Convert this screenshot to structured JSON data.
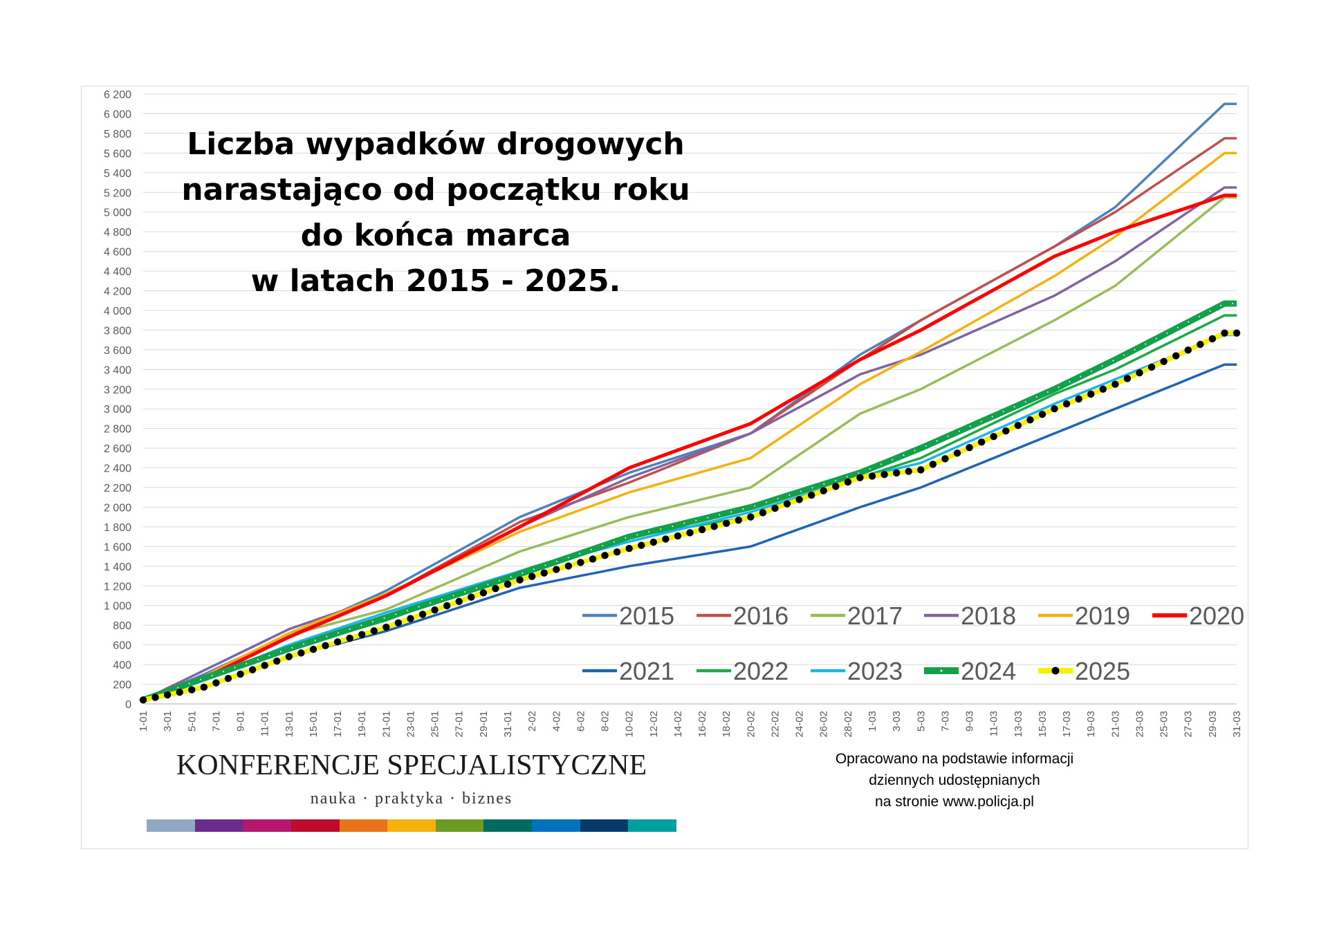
{
  "title_lines": [
    "Liczba wypadków drogowych",
    "narastająco od początku roku",
    "do końca marca",
    "w latach 2015 - 2025."
  ],
  "brand": {
    "name": "KONFERENCJE SPECJALISTYCZNE",
    "tagline": "nauka · praktyka · biznes",
    "bar_colors": [
      "#8ea9c1",
      "#6a2c8c",
      "#b5176e",
      "#c00a2c",
      "#e8731b",
      "#f6b10f",
      "#6c9a23",
      "#006b5f",
      "#0071bd",
      "#063a6b",
      "#00a0a0"
    ]
  },
  "source_lines": [
    "Opracowano na podstawie informacji",
    "dziennych udostępnianych",
    "na stronie www.policja.pl"
  ],
  "chart_data": {
    "type": "line",
    "title": "Liczba wypadków drogowych narastająco od początku roku do końca marca w latach 2015 - 2025.",
    "ylim": [
      0,
      6200
    ],
    "yticks": [
      0,
      200,
      400,
      600,
      800,
      1000,
      1200,
      1400,
      1600,
      1800,
      2000,
      2200,
      2400,
      2600,
      2800,
      3000,
      3200,
      3400,
      3600,
      3800,
      4000,
      4200,
      4400,
      4600,
      4800,
      5000,
      5200,
      5400,
      5600,
      5800,
      6000,
      6200
    ],
    "ytick_labels": [
      "0",
      "200",
      "400",
      "600",
      "800",
      "1 000",
      "1 200",
      "1 400",
      "1 600",
      "1 800",
      "2 000",
      "2 200",
      "2 400",
      "2 600",
      "2 800",
      "3 000",
      "3 200",
      "3 400",
      "3 600",
      "3 800",
      "4 000",
      "4 200",
      "4 400",
      "4 600",
      "4 800",
      "5 000",
      "5 200",
      "5 400",
      "5 600",
      "5 800",
      "6 000",
      "6 200"
    ],
    "x_tick_labels": [
      "1-01",
      "3-01",
      "5-01",
      "7-01",
      "9-01",
      "11-01",
      "13-01",
      "15-01",
      "17-01",
      "19-01",
      "21-01",
      "23-01",
      "25-01",
      "27-01",
      "29-01",
      "31-01",
      "2-02",
      "4-02",
      "6-02",
      "8-02",
      "10-02",
      "12-02",
      "14-02",
      "16-02",
      "18-02",
      "20-02",
      "22-02",
      "24-02",
      "26-02",
      "28-02",
      "1-03",
      "3-03",
      "5-03",
      "7-03",
      "9-03",
      "11-03",
      "13-03",
      "15-03",
      "17-03",
      "19-03",
      "21-03",
      "23-03",
      "25-03",
      "27-03",
      "29-03",
      "31-03"
    ],
    "grid": true,
    "legend_position": "bottom-right",
    "series": [
      {
        "name": "2015",
        "color": "#4f81bd",
        "points": [
          [
            0,
            40
          ],
          [
            5,
            300
          ],
          [
            12,
            700
          ],
          [
            20,
            1150
          ],
          [
            31,
            1900
          ],
          [
            40,
            2350
          ],
          [
            50,
            2750
          ],
          [
            59,
            3550
          ],
          [
            64,
            3900
          ],
          [
            75,
            4650
          ],
          [
            80,
            5050
          ],
          [
            89,
            6100
          ]
        ]
      },
      {
        "name": "2016",
        "color": "#c0504d",
        "points": [
          [
            0,
            40
          ],
          [
            5,
            280
          ],
          [
            12,
            700
          ],
          [
            20,
            1100
          ],
          [
            31,
            1850
          ],
          [
            40,
            2250
          ],
          [
            50,
            2750
          ],
          [
            59,
            3500
          ],
          [
            64,
            3900
          ],
          [
            75,
            4650
          ],
          [
            80,
            5000
          ],
          [
            89,
            5750
          ]
        ]
      },
      {
        "name": "2017",
        "color": "#9bbb59",
        "points": [
          [
            0,
            40
          ],
          [
            6,
            300
          ],
          [
            12,
            700
          ],
          [
            20,
            960
          ],
          [
            31,
            1550
          ],
          [
            40,
            1900
          ],
          [
            50,
            2200
          ],
          [
            59,
            2950
          ],
          [
            64,
            3200
          ],
          [
            75,
            3900
          ],
          [
            80,
            4250
          ],
          [
            89,
            5150
          ]
        ]
      },
      {
        "name": "2018",
        "color": "#8064a2",
        "points": [
          [
            0,
            40
          ],
          [
            6,
            400
          ],
          [
            12,
            760
          ],
          [
            20,
            1100
          ],
          [
            31,
            1800
          ],
          [
            40,
            2300
          ],
          [
            50,
            2750
          ],
          [
            59,
            3350
          ],
          [
            64,
            3550
          ],
          [
            75,
            4150
          ],
          [
            80,
            4500
          ],
          [
            89,
            5250
          ]
        ]
      },
      {
        "name": "2019",
        "color": "#f6b10f",
        "points": [
          [
            0,
            40
          ],
          [
            5,
            280
          ],
          [
            12,
            720
          ],
          [
            20,
            1120
          ],
          [
            31,
            1750
          ],
          [
            40,
            2150
          ],
          [
            50,
            2500
          ],
          [
            59,
            3250
          ],
          [
            64,
            3580
          ],
          [
            75,
            4350
          ],
          [
            80,
            4750
          ],
          [
            89,
            5600
          ]
        ]
      },
      {
        "name": "2020",
        "color": "#ff0000",
        "points": [
          [
            0,
            40
          ],
          [
            6,
            320
          ],
          [
            12,
            680
          ],
          [
            20,
            1100
          ],
          [
            31,
            1800
          ],
          [
            40,
            2400
          ],
          [
            50,
            2850
          ],
          [
            59,
            3500
          ],
          [
            64,
            3800
          ],
          [
            75,
            4550
          ],
          [
            80,
            4800
          ],
          [
            89,
            5170
          ]
        ]
      },
      {
        "name": "2021",
        "color": "#1f64b4",
        "points": [
          [
            0,
            40
          ],
          [
            5,
            180
          ],
          [
            12,
            480
          ],
          [
            20,
            740
          ],
          [
            31,
            1180
          ],
          [
            40,
            1400
          ],
          [
            50,
            1600
          ],
          [
            59,
            2000
          ],
          [
            64,
            2200
          ],
          [
            75,
            2750
          ],
          [
            80,
            3000
          ],
          [
            89,
            3450
          ]
        ]
      },
      {
        "name": "2022",
        "color": "#1ea84a",
        "points": [
          [
            0,
            40
          ],
          [
            5,
            250
          ],
          [
            12,
            560
          ],
          [
            20,
            850
          ],
          [
            31,
            1350
          ],
          [
            40,
            1700
          ],
          [
            50,
            1900
          ],
          [
            59,
            2300
          ],
          [
            64,
            2500
          ],
          [
            75,
            3150
          ],
          [
            80,
            3400
          ],
          [
            89,
            3950
          ]
        ]
      },
      {
        "name": "2023",
        "color": "#19b5ec",
        "points": [
          [
            0,
            40
          ],
          [
            5,
            250
          ],
          [
            12,
            600
          ],
          [
            20,
            930
          ],
          [
            31,
            1350
          ],
          [
            40,
            1650
          ],
          [
            50,
            1950
          ],
          [
            59,
            2300
          ],
          [
            64,
            2450
          ],
          [
            75,
            3050
          ],
          [
            80,
            3300
          ],
          [
            89,
            3750
          ]
        ]
      },
      {
        "name": "2024",
        "color": "#13a04a",
        "points": [
          [
            0,
            40
          ],
          [
            5,
            260
          ],
          [
            12,
            560
          ],
          [
            20,
            880
          ],
          [
            31,
            1320
          ],
          [
            40,
            1700
          ],
          [
            50,
            2000
          ],
          [
            59,
            2350
          ],
          [
            64,
            2600
          ],
          [
            75,
            3200
          ],
          [
            80,
            3500
          ],
          [
            89,
            4070
          ]
        ]
      },
      {
        "name": "2025",
        "color": "#f9f000",
        "points": [
          [
            0,
            40
          ],
          [
            5,
            170
          ],
          [
            12,
            480
          ],
          [
            20,
            780
          ],
          [
            31,
            1260
          ],
          [
            40,
            1580
          ],
          [
            50,
            1900
          ],
          [
            59,
            2300
          ],
          [
            64,
            2380
          ],
          [
            75,
            3000
          ],
          [
            80,
            3250
          ],
          [
            89,
            3770
          ]
        ]
      }
    ]
  }
}
